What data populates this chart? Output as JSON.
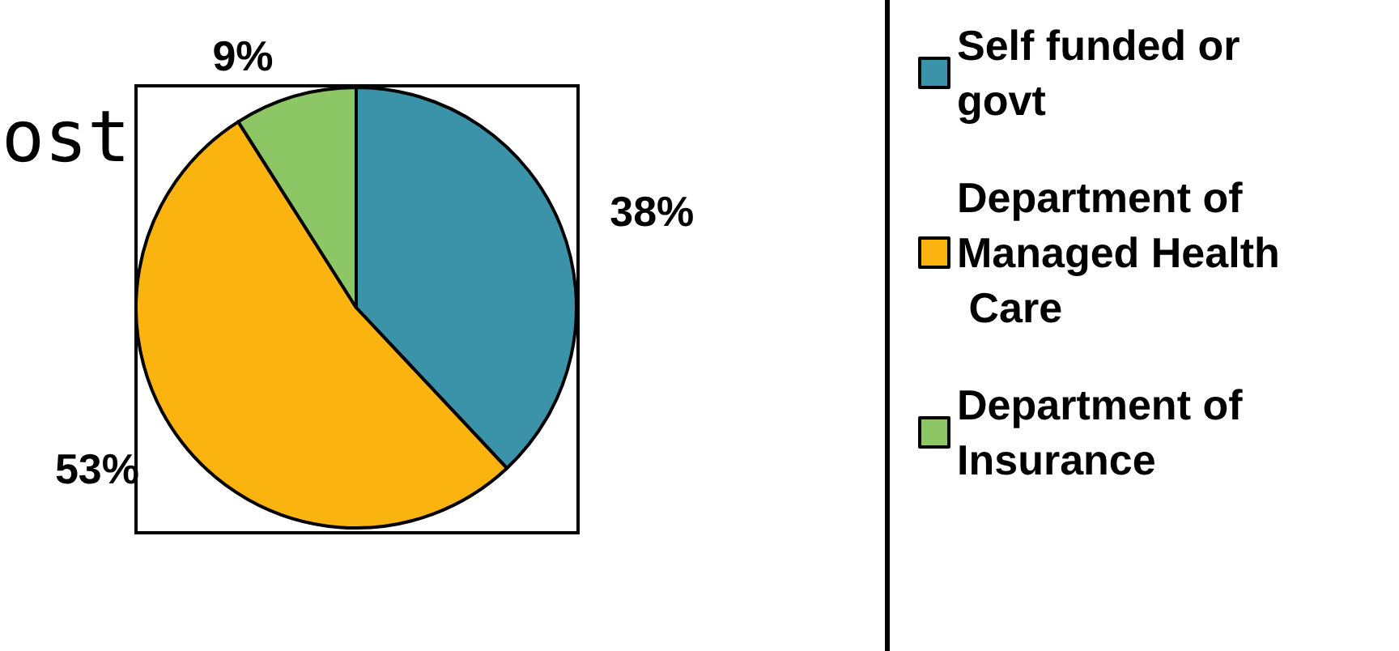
{
  "chart_data": {
    "type": "pie",
    "title": "ost",
    "categories": [
      "Self funded or govt",
      "Department of Managed Health Care",
      "Department of Insurance"
    ],
    "values": [
      38,
      53,
      9
    ],
    "colors": [
      "#3a93a8",
      "#fbb40f",
      "#8dc665"
    ],
    "value_labels": [
      "38%",
      "53%",
      "9%"
    ],
    "legend": "right"
  }
}
